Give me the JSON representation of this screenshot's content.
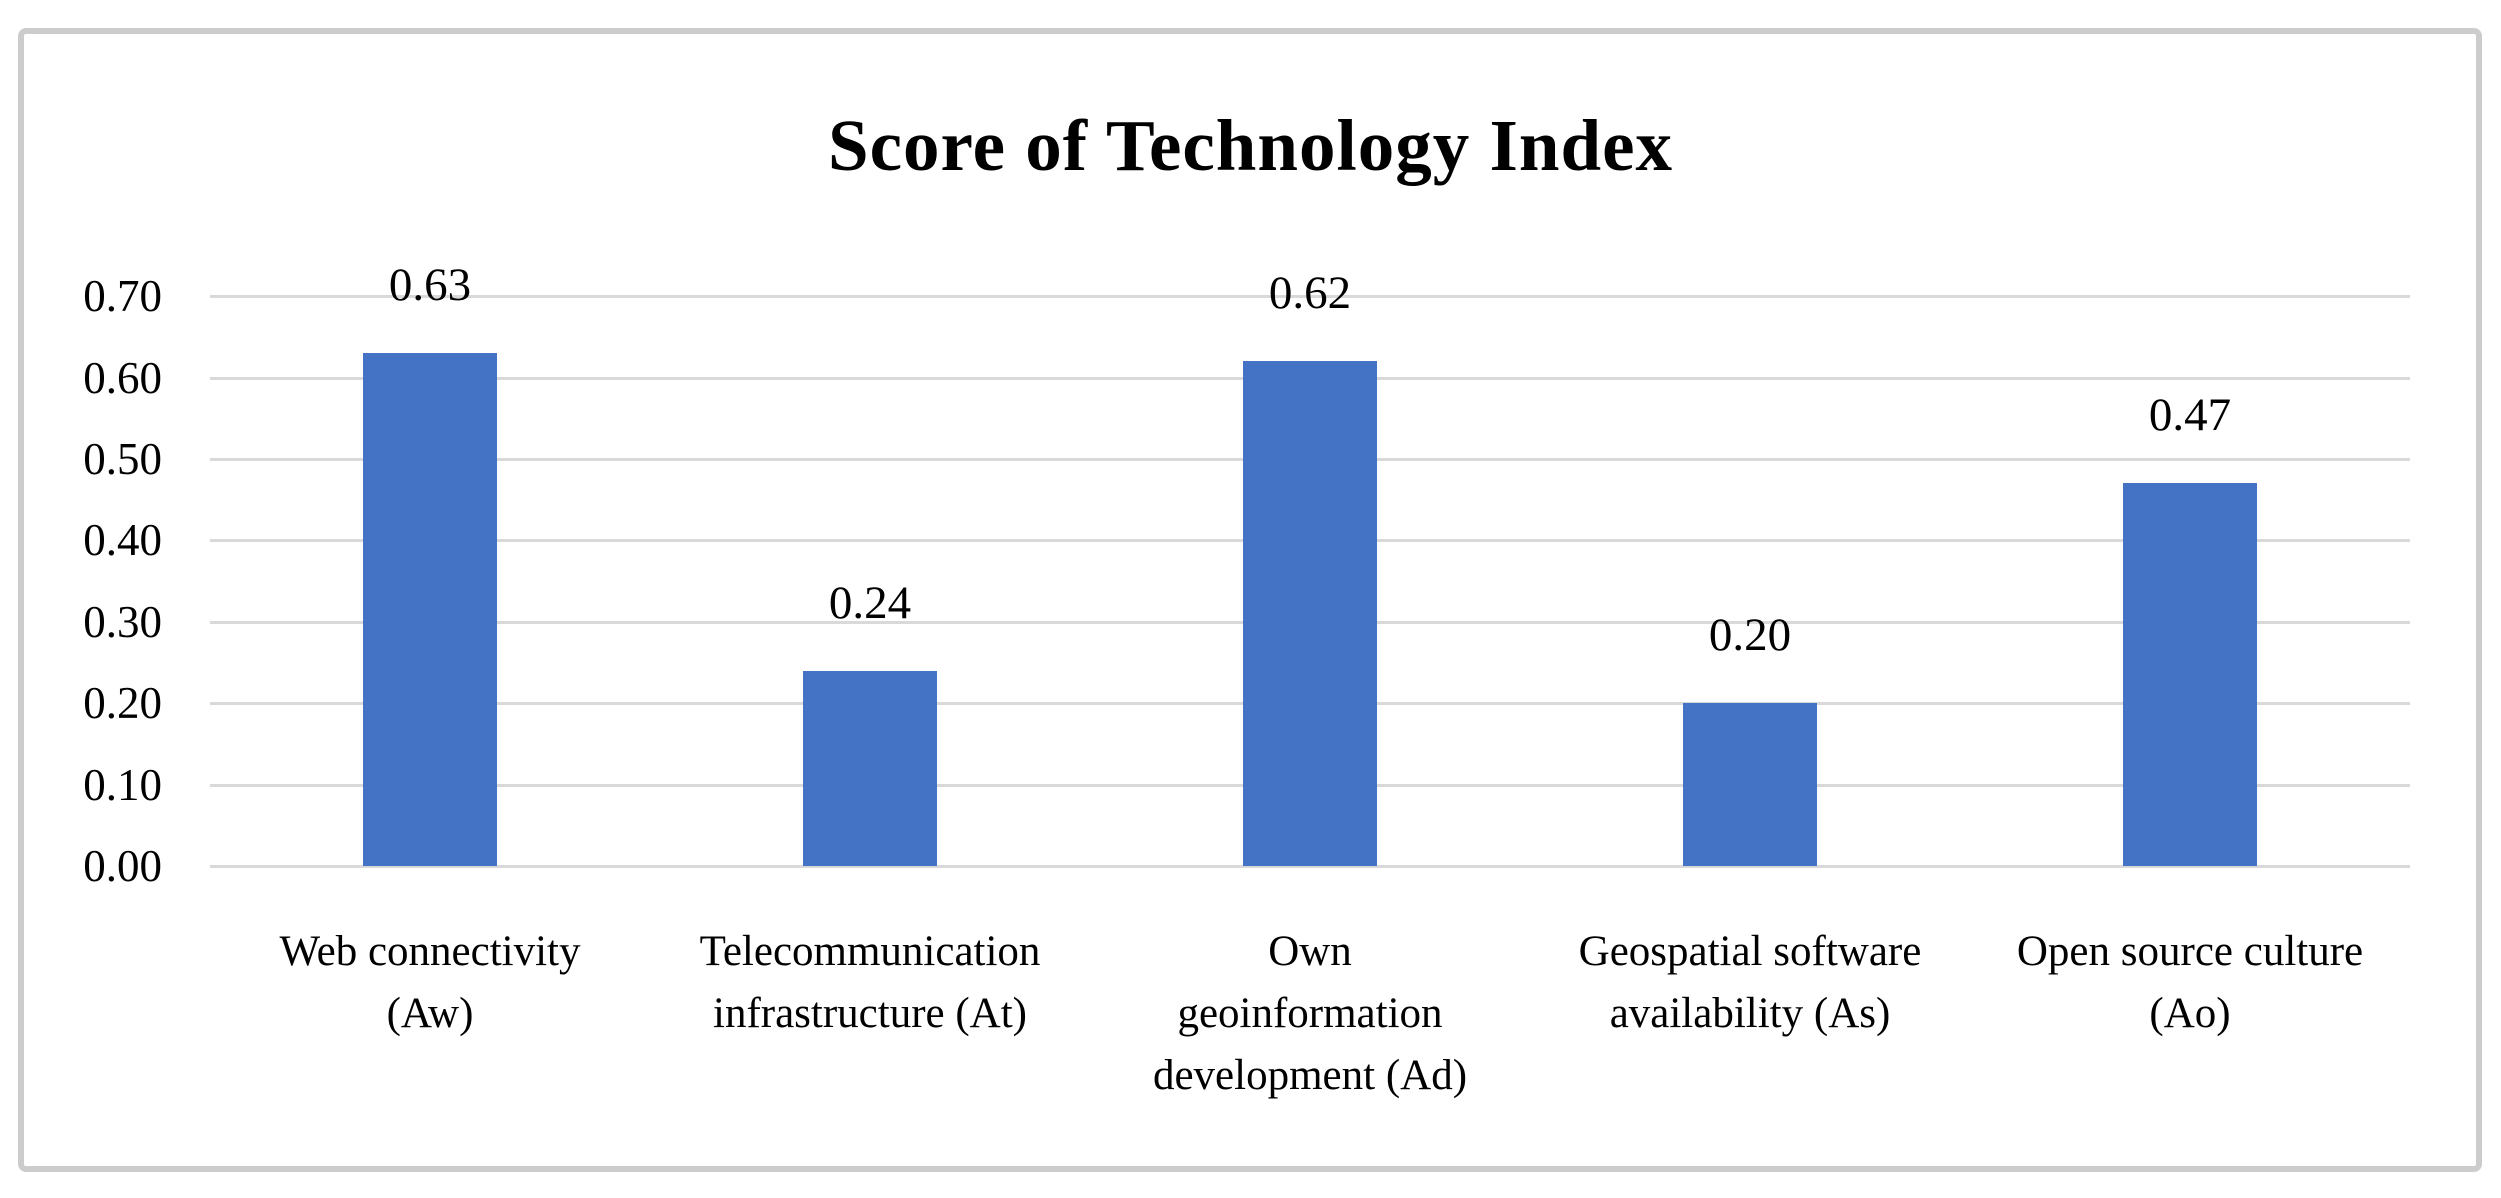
{
  "chart_data": {
    "type": "bar",
    "title": "Score of Technology Index",
    "categories": [
      "Web connectivity (Aw)",
      "Telecommunication infrastructure (At)",
      "Own geoinformation development (Ad)",
      "Geospatial software availability (As)",
      "Open source culture (Ao)"
    ],
    "category_lines": [
      [
        "Web connectivity",
        "(Aw)"
      ],
      [
        "Telecommunication",
        "infrastructure (At)"
      ],
      [
        "Own",
        "geoinformation",
        "development (Ad)"
      ],
      [
        "Geospatial software",
        "availability (As)"
      ],
      [
        "Open source culture",
        "(Ao)"
      ]
    ],
    "values": [
      0.63,
      0.24,
      0.62,
      0.2,
      0.47
    ],
    "value_labels": [
      "0.63",
      "0.24",
      "0.62",
      "0.20",
      "0.47"
    ],
    "ytick_values": [
      0.7,
      0.6,
      0.5,
      0.4,
      0.3,
      0.2,
      0.1,
      0.0
    ],
    "ytick_labels": [
      "0.70",
      "0.60",
      "0.50",
      "0.40",
      "0.30",
      "0.20",
      "0.10",
      "0.00"
    ],
    "ylim": [
      0,
      0.7
    ],
    "grid": true,
    "legend": false,
    "xlabel": "",
    "ylabel": "",
    "bar_color": "#4472C4",
    "gridline_color": "#D9D9D9",
    "frame_border_color": "#CCCCCC",
    "text_color": "#000000"
  }
}
